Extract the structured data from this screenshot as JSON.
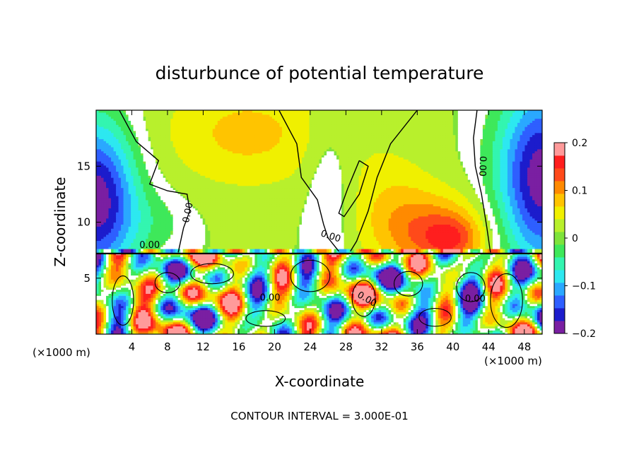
{
  "chart_data": {
    "type": "heatmap",
    "title": "disturbunce of potential temperature",
    "xlabel": "X-coordinate",
    "ylabel": "Z-coordinate",
    "x_unit": "(×1000 m)",
    "x_unit_right": "(×1000 m)",
    "xlim": [
      0,
      50
    ],
    "ylim": [
      0,
      20
    ],
    "x_ticks": [
      4,
      8,
      12,
      16,
      20,
      24,
      28,
      32,
      36,
      40,
      44,
      48
    ],
    "y_ticks": [
      5,
      10,
      15
    ],
    "colorbar": {
      "range": [
        -0.2,
        0.2
      ],
      "ticks": [
        0.2,
        0.1,
        0,
        -0.1,
        -0.2
      ],
      "tick_labels": [
        "0.2",
        "0.1",
        "0",
        "−0.1",
        "−0.2"
      ],
      "colors": [
        "#7a1fa2",
        "#1c1ccc",
        "#2e5fff",
        "#2aa8ff",
        "#2de8f0",
        "#33f5b0",
        "#3ee85a",
        "#7ee33b",
        "#b8f02c",
        "#f0f000",
        "#ffc400",
        "#ff8a00",
        "#ff4a1a",
        "#ff1e1e",
        "#ff9a9a"
      ]
    },
    "contour_labels": [
      "0.00",
      "0.00",
      "0.00",
      "0.00",
      "0.00",
      "0.00",
      "0.00"
    ],
    "contour_interval_text": "CONTOUR INTERVAL = 3.000E-01",
    "interface_z": 7.2
  }
}
